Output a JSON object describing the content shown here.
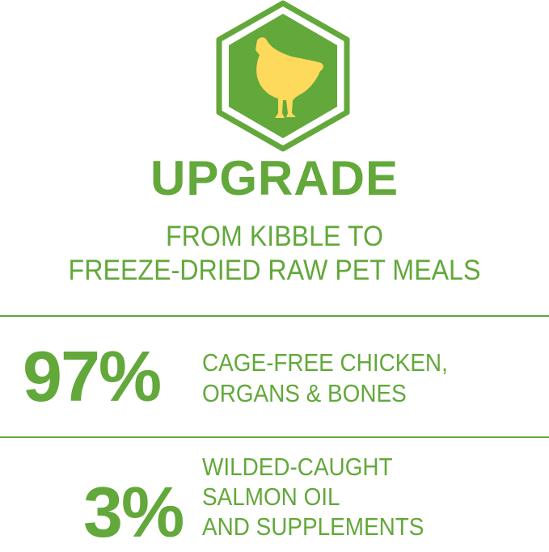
{
  "colors": {
    "accent": "#62a83a",
    "chicken": "#fdd95c"
  },
  "badge": {
    "icon": "chicken-icon"
  },
  "title": "UPGRADE",
  "subtitle": [
    "FROM KIBBLE TO",
    "FREEZE-DRIED RAW PET MEALS"
  ],
  "stats": [
    {
      "value": "97%",
      "lines": [
        "CAGE-FREE CHICKEN,",
        "ORGANS & BONES"
      ]
    },
    {
      "value": "3%",
      "lines": [
        "WILDED-CAUGHT",
        "SALMON OIL",
        "AND SUPPLEMENTS"
      ]
    }
  ]
}
